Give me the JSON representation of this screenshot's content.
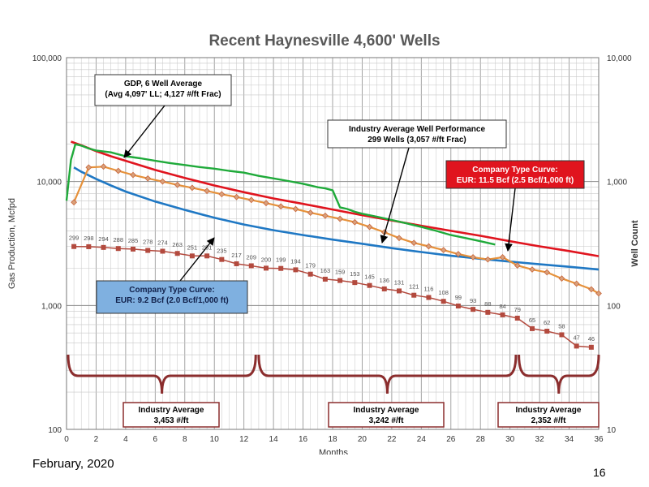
{
  "slide": {
    "date": "February, 2020",
    "page_number": "16"
  },
  "chart_data": {
    "type": "line",
    "title": "Recent Haynesville 4,600' Wells",
    "xlabel": "Months",
    "ylabel_left": "Gas Production, Mcfpd",
    "ylabel_right": "Well Count",
    "xlim": [
      0,
      36
    ],
    "ylim_left": [
      100,
      100000
    ],
    "ylim_right": [
      10,
      10000
    ],
    "yscale": "log",
    "grid": true,
    "x_ticks": [
      0,
      2,
      4,
      6,
      8,
      10,
      12,
      14,
      16,
      18,
      20,
      22,
      24,
      26,
      28,
      30,
      32,
      34,
      36
    ],
    "y_left_ticks": [
      {
        "value": 100,
        "label": "100"
      },
      {
        "value": 1000,
        "label": "1,000"
      },
      {
        "value": 10000,
        "label": "10,000"
      },
      {
        "value": 100000,
        "label": "100,000"
      }
    ],
    "y_right_ticks": [
      {
        "value": 10,
        "label": "10"
      },
      {
        "value": 100,
        "label": "100"
      },
      {
        "value": 1000,
        "label": "1,000"
      },
      {
        "value": 10000,
        "label": "10,000"
      }
    ],
    "series": [
      {
        "key": "gdp",
        "color": "#1faa3a",
        "axis": "left",
        "x": [
          0,
          0.3,
          0.6,
          1,
          1.5,
          2,
          2.5,
          3,
          3.5,
          4,
          5,
          6,
          7,
          8,
          9,
          10,
          11,
          12,
          13,
          14,
          15,
          16,
          16.5,
          17,
          17.5,
          18,
          18.5,
          19,
          19.5,
          20,
          21,
          22,
          23,
          24,
          25,
          26,
          27,
          28,
          29
        ],
        "values": [
          7000,
          15000,
          20000,
          19500,
          18500,
          17800,
          17500,
          17200,
          16600,
          16000,
          15400,
          14700,
          14100,
          13600,
          13100,
          12700,
          12200,
          11800,
          11100,
          10600,
          10100,
          9600,
          9300,
          9000,
          8800,
          8500,
          6200,
          6000,
          5700,
          5500,
          5200,
          4900,
          4600,
          4300,
          4000,
          3700,
          3500,
          3300,
          3100
        ]
      },
      {
        "key": "industry_avg",
        "color": "#e6913a",
        "marker_color": "#c8653a",
        "axis": "left",
        "x": [
          0.5,
          1.5,
          2.5,
          3.5,
          4.5,
          5.5,
          6.5,
          7.5,
          8.5,
          9.5,
          10.5,
          11.5,
          12.5,
          13.5,
          14.5,
          15.5,
          16.5,
          17.5,
          18.5,
          19.5,
          20.5,
          21.5,
          22.5,
          23.5,
          24.5,
          25.5,
          26.5,
          27.5,
          28.5,
          29.5,
          30.5,
          31.5,
          32.5,
          33.5,
          34.5,
          35.5,
          36
        ],
        "values": [
          6800,
          13000,
          13200,
          12200,
          11300,
          10600,
          10000,
          9400,
          8900,
          8400,
          7900,
          7500,
          7100,
          6700,
          6300,
          6000,
          5600,
          5300,
          5000,
          4700,
          4300,
          3900,
          3500,
          3200,
          3000,
          2800,
          2600,
          2450,
          2350,
          2450,
          2100,
          1950,
          1850,
          1650,
          1500,
          1350,
          1250
        ]
      },
      {
        "key": "company_red",
        "color": "#e0141e",
        "axis": "left",
        "x": [
          0.3,
          1,
          2,
          3,
          4,
          6,
          8,
          10,
          12,
          14,
          16,
          18,
          20,
          22,
          24,
          26,
          28,
          30,
          32,
          34,
          36
        ],
        "values": [
          21000,
          19600,
          17600,
          16000,
          14700,
          12400,
          10700,
          9300,
          8200,
          7300,
          6600,
          5950,
          5350,
          4850,
          4400,
          4000,
          3650,
          3300,
          3000,
          2750,
          2500
        ]
      },
      {
        "key": "company_blue",
        "color": "#1f78c4",
        "axis": "left",
        "x": [
          0.5,
          1,
          2,
          3,
          4,
          6,
          8,
          10,
          12,
          14,
          16,
          18,
          20,
          22,
          24,
          26,
          28,
          30,
          32,
          34,
          36
        ],
        "values": [
          13000,
          12000,
          10500,
          9300,
          8300,
          6900,
          5900,
          5100,
          4500,
          4050,
          3700,
          3400,
          3150,
          2900,
          2700,
          2520,
          2380,
          2260,
          2150,
          2050,
          1950
        ]
      },
      {
        "key": "well_count",
        "color": "#b34a3e",
        "axis": "right",
        "x": [
          0.5,
          1.5,
          2.5,
          3.5,
          4.5,
          5.5,
          6.5,
          7.5,
          8.5,
          9.5,
          10.5,
          11.5,
          12.5,
          13.5,
          14.5,
          15.5,
          16.5,
          17.5,
          18.5,
          19.5,
          20.5,
          21.5,
          22.5,
          23.5,
          24.5,
          25.5,
          26.5,
          27.5,
          28.5,
          29.5,
          30.5,
          31.5,
          32.5,
          33.5,
          34.5,
          35.5
        ],
        "values": [
          299,
          298,
          294,
          288,
          285,
          278,
          274,
          263,
          251,
          251,
          235,
          217,
          209,
          200,
          199,
          194,
          179,
          163,
          159,
          153,
          145,
          136,
          131,
          121,
          116,
          108,
          99,
          93,
          88,
          84,
          79,
          65,
          62,
          58,
          47,
          46
        ],
        "labels": [
          "299",
          "298",
          "294",
          "288",
          "285",
          "278",
          "274",
          "263",
          "251",
          "251",
          "235",
          "217",
          "209",
          "200",
          "199",
          "194",
          "179",
          "163",
          "159",
          "153",
          "145",
          "136",
          "131",
          "121",
          "116",
          "108",
          "99",
          "93",
          "88",
          "84",
          "79",
          "65",
          "62",
          "58",
          "47",
          "46"
        ]
      }
    ],
    "callouts": [
      {
        "key": "gdp",
        "lines": [
          "GDP, 6 Well Average",
          "(Avg 4,097' LL; 4,127 #/ft Frac)"
        ],
        "fill": "#ffffff",
        "text_color": "#000000"
      },
      {
        "key": "industry",
        "lines": [
          "Industry Average Well Performance",
          "299 Wells (3,057 #/ft Frac)"
        ],
        "fill": "#ffffff",
        "text_color": "#000000"
      },
      {
        "key": "red",
        "lines": [
          "Company Type Curve:",
          "EUR: 11.5 Bcf (2.5 Bcf/1,000 ft)"
        ],
        "fill": "#e0141e",
        "text_color": "#ffffff"
      },
      {
        "key": "blue",
        "lines": [
          "Company Type Curve:",
          "EUR: 9.2 Bcf (2.0 Bcf/1,000 ft)"
        ],
        "fill": "#7fb0e0",
        "text_color": "#10204a"
      }
    ],
    "brackets": [
      {
        "key": "b1",
        "x_range": [
          -0.3,
          12.8
        ],
        "lines": [
          "Industry Average",
          "3,453 #/ft"
        ]
      },
      {
        "key": "b2",
        "x_range": [
          13.0,
          30.4
        ],
        "lines": [
          "Industry Average",
          "3,242 #/ft"
        ]
      },
      {
        "key": "b3",
        "x_range": [
          30.6,
          36.2
        ],
        "lines": [
          "Industry Average",
          "2,352 #/ft"
        ]
      }
    ],
    "bracket_color": "#8b2d2d"
  }
}
